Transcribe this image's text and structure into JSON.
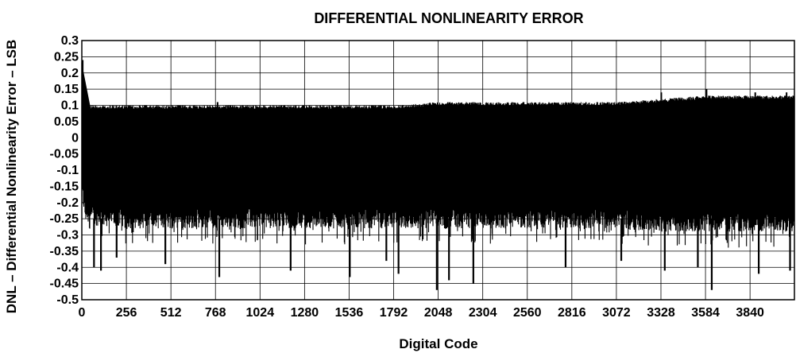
{
  "chart_data": {
    "type": "line",
    "title": "DIFFERENTIAL NONLINEARITY ERROR",
    "xlabel": "Digital Code",
    "ylabel": "DNL – Differential Nonlinearity Error – LSB",
    "xlim": [
      0,
      4095
    ],
    "ylim": [
      -0.5,
      0.3
    ],
    "grid": true,
    "x_ticks": [
      "0",
      "256",
      "512",
      "768",
      "1024",
      "1280",
      "1536",
      "1792",
      "2048",
      "2304",
      "2560",
      "2816",
      "3072",
      "3328",
      "3584",
      "3840"
    ],
    "y_ticks": [
      "0.3",
      "0.25",
      "0.2",
      "0.15",
      "0.1",
      "0.05",
      "0",
      "-0.05",
      "-0.1",
      "-0.15",
      "-0.2",
      "-0.25",
      "-0.3",
      "-0.35",
      "-0.4",
      "-0.45",
      "-0.5"
    ],
    "series": [
      {
        "envelope": {
          "x": [
            0,
            5,
            20,
            60,
            256,
            512,
            768,
            1024,
            1280,
            1536,
            1792,
            2048,
            2304,
            2560,
            2816,
            3072,
            3328,
            3584,
            3840,
            4095
          ],
          "upper": [
            0.24,
            0.22,
            0.1,
            0.1,
            0.1,
            0.1,
            0.1,
            0.1,
            0.1,
            0.1,
            0.1,
            0.11,
            0.11,
            0.11,
            0.11,
            0.11,
            0.12,
            0.13,
            0.13,
            0.13
          ],
          "typical_lower": [
            -0.2,
            -0.2,
            -0.26,
            -0.27,
            -0.28,
            -0.28,
            -0.28,
            -0.28,
            -0.28,
            -0.28,
            -0.28,
            -0.28,
            -0.28,
            -0.28,
            -0.28,
            -0.28,
            -0.29,
            -0.29,
            -0.29,
            -0.29
          ],
          "peaks": [
            [
              5,
              0.24
            ],
            [
              780,
              0.11
            ],
            [
              3330,
              0.14
            ],
            [
              3590,
              0.15
            ],
            [
              3870,
              0.14
            ],
            [
              4050,
              0.14
            ]
          ],
          "troughs": [
            [
              70,
              -0.4
            ],
            [
              110,
              -0.41
            ],
            [
              200,
              -0.37
            ],
            [
              480,
              -0.39
            ],
            [
              790,
              -0.43
            ],
            [
              1200,
              -0.41
            ],
            [
              1540,
              -0.43
            ],
            [
              1750,
              -0.38
            ],
            [
              1820,
              -0.42
            ],
            [
              2040,
              -0.47
            ],
            [
              2110,
              -0.44
            ],
            [
              2250,
              -0.45
            ],
            [
              2780,
              -0.4
            ],
            [
              3100,
              -0.38
            ],
            [
              3350,
              -0.41
            ],
            [
              3540,
              -0.4
            ],
            [
              3620,
              -0.47
            ],
            [
              3890,
              -0.42
            ],
            [
              4070,
              -0.41
            ]
          ]
        }
      }
    ]
  }
}
